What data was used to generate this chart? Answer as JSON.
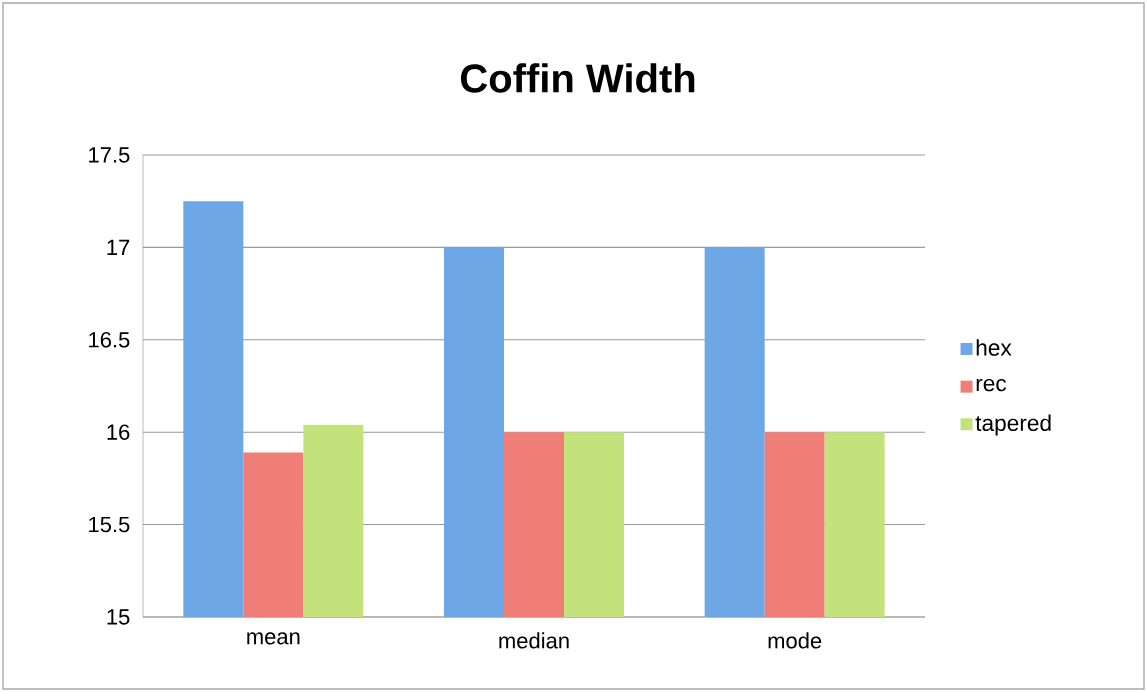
{
  "chart_data": {
    "type": "bar",
    "title": "Coffin Width",
    "categories": [
      "mean",
      "median",
      "mode"
    ],
    "series": [
      {
        "name": "hex",
        "color": "#6ea7e6",
        "values": [
          17.25,
          17,
          17
        ]
      },
      {
        "name": "rec",
        "color": "#ef7d78",
        "values": [
          15.89,
          16,
          16
        ]
      },
      {
        "name": "tapered",
        "color": "#c4e27c",
        "values": [
          16.04,
          16,
          16
        ]
      }
    ],
    "ylim": [
      15,
      17.5
    ],
    "yticks": [
      15,
      15.5,
      16,
      16.5,
      17,
      17.5
    ],
    "grid": "y",
    "legend": "right"
  }
}
